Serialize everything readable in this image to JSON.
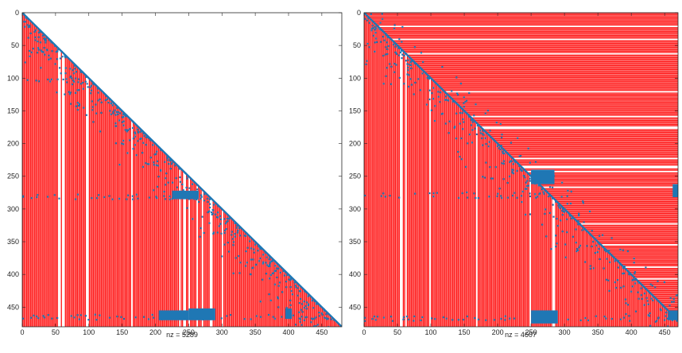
{
  "chart_data": [
    {
      "type": "heatmap",
      "subtype": "sparsity-pattern",
      "xlabel": "nz = 5289",
      "ylabel": "",
      "title": "",
      "xlim": [
        0,
        480
      ],
      "ylim": [
        0,
        480
      ],
      "y_reversed": true,
      "xticks": [
        0,
        50,
        100,
        150,
        200,
        250,
        300,
        350,
        400,
        450
      ],
      "yticks": [
        0,
        50,
        100,
        150,
        200,
        250,
        300,
        350,
        400,
        450
      ],
      "fill_region": "lower-triangular columns",
      "fill_color": "#ff1a1a",
      "nonzero_color": "#1f77b4",
      "column_gaps": [
        55,
        61,
        97,
        164,
        236,
        243,
        250,
        262,
        270,
        283,
        300
      ],
      "column_blocks": [
        [
          0,
          55
        ],
        [
          61,
          97
        ],
        [
          100,
          164
        ],
        [
          168,
          236
        ],
        [
          252,
          283
        ],
        [
          286,
          340
        ],
        [
          340,
          370
        ],
        [
          370,
          405
        ],
        [
          405,
          480
        ]
      ],
      "dense_blocks": [
        {
          "rows": [
            272,
            285
          ],
          "cols": [
            225,
            265
          ]
        },
        {
          "rows": [
            452,
            470
          ],
          "cols": [
            250,
            290
          ]
        },
        {
          "rows": [
            455,
            470
          ],
          "cols": [
            205,
            250
          ]
        },
        {
          "rows": [
            452,
            468
          ],
          "cols": [
            395,
            405
          ]
        }
      ]
    },
    {
      "type": "heatmap",
      "subtype": "sparsity-pattern",
      "xlabel": "nz = 4607",
      "ylabel": "",
      "title": "",
      "xlim": [
        0,
        470
      ],
      "ylim": [
        0,
        480
      ],
      "y_reversed": true,
      "xticks": [
        0,
        50,
        100,
        150,
        200,
        250,
        300,
        350,
        400,
        450
      ],
      "yticks": [
        0,
        50,
        100,
        150,
        200,
        250,
        300,
        350,
        400,
        450
      ],
      "fill_region": "lower columns + upper rows",
      "fill_color": "#ff1a1a",
      "nonzero_color": "#1f77b4",
      "row_gaps": [
        20,
        40,
        62,
        120,
        158,
        175,
        222,
        235,
        242,
        266,
        322,
        354,
        388,
        406
      ],
      "column_gaps": [
        55,
        62,
        98,
        168,
        248,
        283
      ],
      "dense_blocks": [
        {
          "rows": [
            240,
            262
          ],
          "cols": [
            250,
            285
          ]
        },
        {
          "rows": [
            455,
            475
          ],
          "cols": [
            250,
            290
          ]
        },
        {
          "rows": [
            455,
            470
          ],
          "cols": [
            455,
            470
          ]
        },
        {
          "rows": [
            262,
            282
          ],
          "cols": [
            462,
            470
          ]
        }
      ]
    }
  ]
}
